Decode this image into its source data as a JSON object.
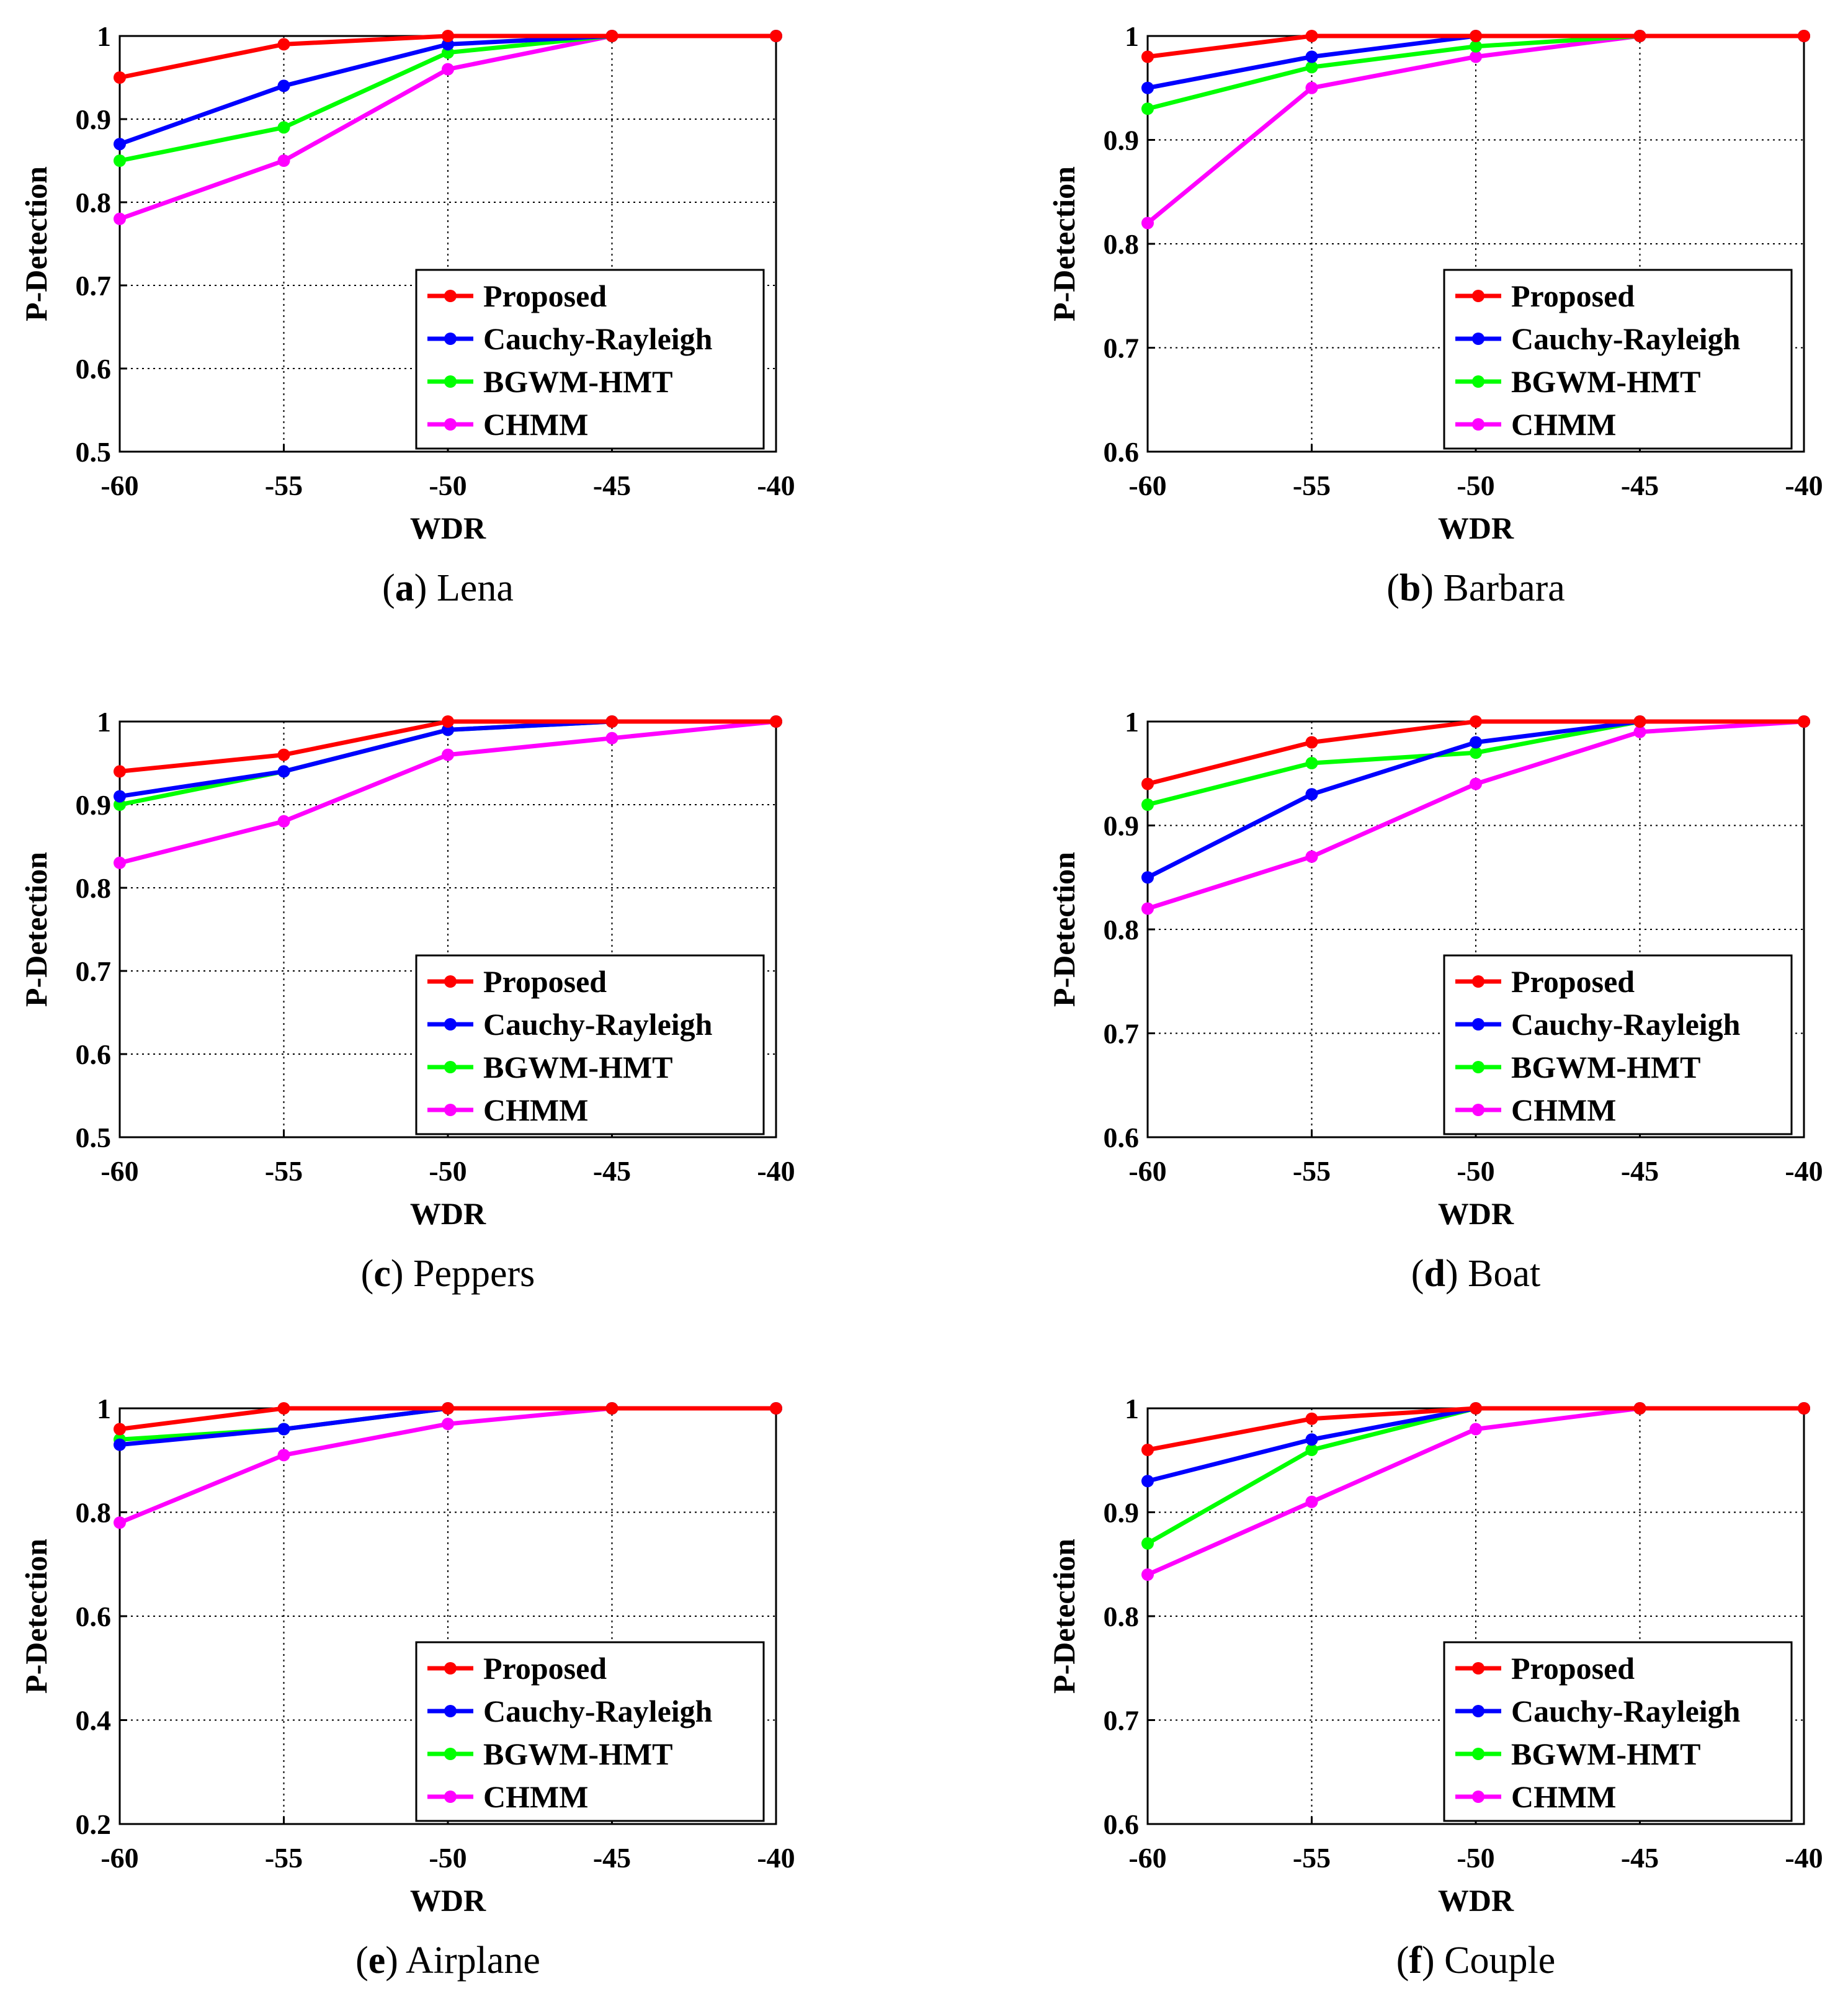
{
  "series_names": [
    "Proposed",
    "Cauchy-Rayleigh",
    "BGWM-HMT",
    "CHMM"
  ],
  "series_colors": [
    "#ff0000",
    "#0000ff",
    "#00ff00",
    "#ff00ff"
  ],
  "chart_data": [
    {
      "type": "line",
      "label": "a",
      "name": "Lena",
      "xlabel": "WDR",
      "ylabel": "P-Detection",
      "x": [
        -60,
        -55,
        -50,
        -45,
        -40
      ],
      "xlim": [
        -60,
        -40
      ],
      "ylim": [
        0.5,
        1
      ],
      "yticks": [
        0.5,
        0.6,
        0.7,
        0.8,
        0.9,
        1
      ],
      "ytick_labels": [
        "0.5",
        "0.6",
        "0.7",
        "0.8",
        "0.9",
        "1"
      ],
      "legend": "bottom-right",
      "series": [
        {
          "name": "Proposed",
          "values": [
            0.95,
            0.99,
            1.0,
            1.0,
            1.0
          ]
        },
        {
          "name": "Cauchy-Rayleigh",
          "values": [
            0.87,
            0.94,
            0.99,
            1.0,
            1.0
          ]
        },
        {
          "name": "BGWM-HMT",
          "values": [
            0.85,
            0.89,
            0.98,
            1.0,
            1.0
          ]
        },
        {
          "name": "CHMM",
          "values": [
            0.78,
            0.85,
            0.96,
            1.0,
            1.0
          ]
        }
      ]
    },
    {
      "type": "line",
      "label": "b",
      "name": "Barbara",
      "xlabel": "WDR",
      "ylabel": "P-Detection",
      "x": [
        -60,
        -55,
        -50,
        -45,
        -40
      ],
      "xlim": [
        -60,
        -40
      ],
      "ylim": [
        0.6,
        1
      ],
      "yticks": [
        0.6,
        0.7,
        0.8,
        0.9,
        1
      ],
      "ytick_labels": [
        "0.6",
        "0.7",
        "0.8",
        "0.9",
        "1"
      ],
      "legend": "bottom-right",
      "series": [
        {
          "name": "Proposed",
          "values": [
            0.98,
            1.0,
            1.0,
            1.0,
            1.0
          ]
        },
        {
          "name": "Cauchy-Rayleigh",
          "values": [
            0.95,
            0.98,
            1.0,
            1.0,
            1.0
          ]
        },
        {
          "name": "BGWM-HMT",
          "values": [
            0.93,
            0.97,
            0.99,
            1.0,
            1.0
          ]
        },
        {
          "name": "CHMM",
          "values": [
            0.82,
            0.95,
            0.98,
            1.0,
            1.0
          ]
        }
      ]
    },
    {
      "type": "line",
      "label": "c",
      "name": "Peppers",
      "xlabel": "WDR",
      "ylabel": "P-Detection",
      "x": [
        -60,
        -55,
        -50,
        -45,
        -40
      ],
      "xlim": [
        -60,
        -40
      ],
      "ylim": [
        0.5,
        1
      ],
      "yticks": [
        0.5,
        0.6,
        0.7,
        0.8,
        0.9,
        1
      ],
      "ytick_labels": [
        "0.5",
        "0.6",
        "0.7",
        "0.8",
        "0.9",
        "1"
      ],
      "legend": "bottom-right",
      "series": [
        {
          "name": "Proposed",
          "values": [
            0.94,
            0.96,
            1.0,
            1.0,
            1.0
          ]
        },
        {
          "name": "Cauchy-Rayleigh",
          "values": [
            0.91,
            0.94,
            0.99,
            1.0,
            1.0
          ]
        },
        {
          "name": "BGWM-HMT",
          "values": [
            0.9,
            0.94,
            0.99,
            1.0,
            1.0
          ]
        },
        {
          "name": "CHMM",
          "values": [
            0.83,
            0.88,
            0.96,
            0.98,
            1.0
          ]
        }
      ]
    },
    {
      "type": "line",
      "label": "d",
      "name": "Boat",
      "xlabel": "WDR",
      "ylabel": "P-Detection",
      "x": [
        -60,
        -55,
        -50,
        -45,
        -40
      ],
      "xlim": [
        -60,
        -40
      ],
      "ylim": [
        0.6,
        1
      ],
      "yticks": [
        0.6,
        0.7,
        0.8,
        0.9,
        1
      ],
      "ytick_labels": [
        "0.6",
        "0.7",
        "0.8",
        "0.9",
        "1"
      ],
      "legend": "bottom-right",
      "series": [
        {
          "name": "Proposed",
          "values": [
            0.94,
            0.98,
            1.0,
            1.0,
            1.0
          ]
        },
        {
          "name": "Cauchy-Rayleigh",
          "values": [
            0.85,
            0.93,
            0.98,
            1.0,
            1.0
          ]
        },
        {
          "name": "BGWM-HMT",
          "values": [
            0.92,
            0.96,
            0.97,
            1.0,
            1.0
          ]
        },
        {
          "name": "CHMM",
          "values": [
            0.82,
            0.87,
            0.94,
            0.99,
            1.0
          ]
        }
      ]
    },
    {
      "type": "line",
      "label": "e",
      "name": "Airplane",
      "xlabel": "WDR",
      "ylabel": "P-Detection",
      "x": [
        -60,
        -55,
        -50,
        -45,
        -40
      ],
      "xlim": [
        -60,
        -40
      ],
      "ylim": [
        0.2,
        1
      ],
      "yticks": [
        0.2,
        0.4,
        0.6,
        0.8,
        1
      ],
      "ytick_labels": [
        "0.2",
        "0.4",
        "0.6",
        "0.8",
        "1"
      ],
      "legend": "bottom-right",
      "series": [
        {
          "name": "Proposed",
          "values": [
            0.96,
            1.0,
            1.0,
            1.0,
            1.0
          ]
        },
        {
          "name": "Cauchy-Rayleigh",
          "values": [
            0.93,
            0.96,
            1.0,
            1.0,
            1.0
          ]
        },
        {
          "name": "BGWM-HMT",
          "values": [
            0.94,
            0.96,
            1.0,
            1.0,
            1.0
          ]
        },
        {
          "name": "CHMM",
          "values": [
            0.78,
            0.91,
            0.97,
            1.0,
            1.0
          ]
        }
      ]
    },
    {
      "type": "line",
      "label": "f",
      "name": "Couple",
      "xlabel": "WDR",
      "ylabel": "P-Detection",
      "x": [
        -60,
        -55,
        -50,
        -45,
        -40
      ],
      "xlim": [
        -60,
        -40
      ],
      "ylim": [
        0.6,
        1
      ],
      "yticks": [
        0.6,
        0.7,
        0.8,
        0.9,
        1
      ],
      "ytick_labels": [
        "0.6",
        "0.7",
        "0.8",
        "0.9",
        "1"
      ],
      "legend": "bottom-right",
      "series": [
        {
          "name": "Proposed",
          "values": [
            0.96,
            0.99,
            1.0,
            1.0,
            1.0
          ]
        },
        {
          "name": "Cauchy-Rayleigh",
          "values": [
            0.93,
            0.97,
            1.0,
            1.0,
            1.0
          ]
        },
        {
          "name": "BGWM-HMT",
          "values": [
            0.87,
            0.96,
            1.0,
            1.0,
            1.0
          ]
        },
        {
          "name": "CHMM",
          "values": [
            0.84,
            0.91,
            0.98,
            1.0,
            1.0
          ]
        }
      ]
    }
  ]
}
